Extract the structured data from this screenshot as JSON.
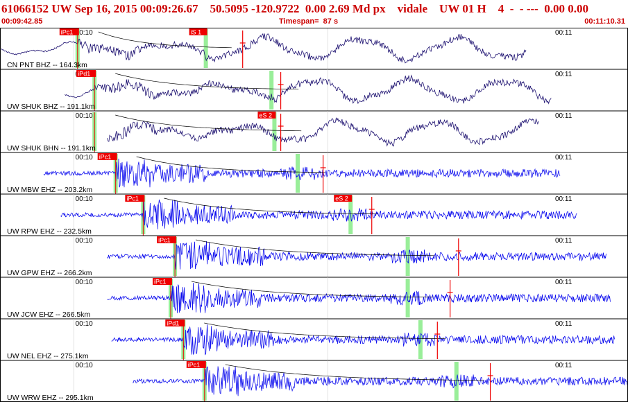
{
  "header": {
    "title": "61066152 UW Sep 16, 2015 00:09:26.67    50.5095 -120.9722  0.00 2.69 Md px    vidale    UW 01 H    4  -  - ---  0.00 0.00",
    "start_time": "00:09:42.85",
    "timespan": "Timespan=  87 s",
    "end_time": "00:11:10.31"
  },
  "colors": {
    "header_text": "#cc0000",
    "trace_dark": "#1c1070",
    "trace_blue": "#1010ee",
    "pick_box": "#ee0000",
    "pick_window": "#99ee99",
    "grid": "#cccccc"
  },
  "time_labels": {
    "left": "00:10",
    "right": "00:11"
  },
  "stations": [
    {
      "label": "CN PNT BHZ -- 164.3km",
      "trace": "dark",
      "style": "smooth",
      "p_pick": "iPc1",
      "p_time": 18.0,
      "s_pick": "iS 1",
      "s_time": 48.3,
      "red_time": 57.0,
      "data_start": 0.0,
      "data_end": 124.0
    },
    {
      "label": "UW SHUK BHZ -- 191.1km",
      "trace": "dark",
      "style": "smooth",
      "p_pick": "iPd1",
      "p_time": 22.0,
      "s_pick": "",
      "s_time": 63.8,
      "red_time": 66.0,
      "data_start": 15.0,
      "data_end": 130.0
    },
    {
      "label": "UW SHUK BHN -- 191.1km",
      "trace": "dark",
      "style": "smooth",
      "p_pick": "",
      "p_time": 22.0,
      "s_pick": "eS 2",
      "s_time": 64.5,
      "red_time": 66.0,
      "data_start": 25.0,
      "data_end": 127.0
    },
    {
      "label": "UW MBW EHZ -- 203.2km",
      "trace": "blue",
      "style": "noise",
      "p_pick": "iPc1",
      "p_time": 27.0,
      "s_pick": "",
      "s_time": 70.0,
      "red_time": 76.0,
      "data_start": 10.0,
      "data_end": 132.0
    },
    {
      "label": "UW RPW EHZ -- 232.5km",
      "trace": "blue",
      "style": "noise",
      "p_pick": "iPc1",
      "p_time": 33.5,
      "s_pick": "eS 2",
      "s_time": 82.5,
      "red_time": 87.5,
      "data_start": 14.0,
      "data_end": 136.0
    },
    {
      "label": "UW GPW EHZ -- 266.2km",
      "trace": "blue",
      "style": "noise",
      "p_pick": "iPc1",
      "p_time": 41.0,
      "s_pick": "",
      "s_time": 96.0,
      "red_time": 108.0,
      "data_start": 25.0,
      "data_end": 143.0
    },
    {
      "label": "UW JCW EHZ -- 266.5km",
      "trace": "blue",
      "style": "noise",
      "p_pick": "iPc1",
      "p_time": 40.0,
      "s_pick": "",
      "s_time": 96.0,
      "red_time": 106.0,
      "data_start": 25.0,
      "data_end": 144.0
    },
    {
      "label": "UW NEL EHZ -- 275.1km",
      "trace": "blue",
      "style": "noise",
      "p_pick": "iPd1",
      "p_time": 43.0,
      "s_pick": "",
      "s_time": 99.0,
      "red_time": 103.0,
      "data_start": 26.0,
      "data_end": 145.0
    },
    {
      "label": "UW WRW EHZ -- 295.1km",
      "trace": "blue",
      "style": "noise",
      "p_pick": "iPc1",
      "p_time": 48.0,
      "s_pick": "",
      "s_time": 107.5,
      "red_time": 115.5,
      "data_start": 31.0,
      "data_end": 148.0
    }
  ]
}
